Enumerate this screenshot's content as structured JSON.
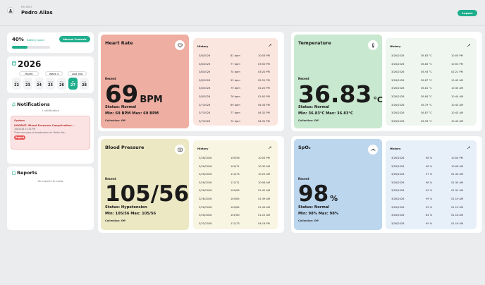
{
  "header": {
    "patient_label": "PATIENT",
    "patient_name": "Pedro Alias",
    "logout_label": "Logout"
  },
  "battery": {
    "percent_label": "40%",
    "status": "Battery good",
    "level": 0.4,
    "manual_label": "Manual Controls"
  },
  "calendar": {
    "year": "2026",
    "modes": [
      "Month",
      "Week 4",
      "Last 30d"
    ],
    "days": [
      {
        "n": "Sun",
        "d": "22"
      },
      {
        "n": "Mon",
        "d": "23"
      },
      {
        "n": "Tue",
        "d": "24"
      },
      {
        "n": "Wed",
        "d": "25"
      },
      {
        "n": "Thu",
        "d": "26"
      },
      {
        "n": "Fri",
        "d": "27",
        "selected": true
      },
      {
        "n": "Sat",
        "d": "28"
      }
    ]
  },
  "notifications": {
    "title": "Notifications",
    "count_label": "1 notification",
    "item": {
      "source": "System",
      "title": "URGENT: Blood Pressure Complication...",
      "time": "3/8/2026 01:24 PM",
      "message": "There are signs of hypotension for Pedro Alia...",
      "tag": "Urgent"
    }
  },
  "reports": {
    "title": "Reports",
    "empty": "No reports to show"
  },
  "history_label": "History",
  "metrics": {
    "heart": {
      "title": "Heart Rate",
      "recent": "Recent",
      "value": "69",
      "unit": "BPM",
      "status": "Status: Normal",
      "minmax": "Min: 69 BPM  Max: 69 BPM",
      "collection": "Collection: Off",
      "history": [
        [
          "3/8/2026",
          "81 bpm",
          "10:03 PM"
        ],
        [
          "3/8/2026",
          "77 bpm",
          "03:50 PM"
        ],
        [
          "3/8/2026",
          "74 bpm",
          "03:20 PM"
        ],
        [
          "3/8/2026",
          "92 bpm",
          "02:51 PM"
        ],
        [
          "3/8/2026",
          "79 bpm",
          "02:20 PM"
        ],
        [
          "3/8/2026",
          "76 bpm",
          "01:00 PM"
        ],
        [
          "3/7/2026",
          "69 bpm",
          "04:34 PM"
        ],
        [
          "3/7/2026",
          "77 bpm",
          "04:32 PM"
        ],
        [
          "3/7/2026",
          "72 bpm",
          "04:31 PM"
        ]
      ]
    },
    "temp": {
      "title": "Temperature",
      "recent": "Recent",
      "value": "36.83",
      "unit": "°C",
      "status": "Status: Normal",
      "minmax": "Min: 36.83°C  Max: 36.83°C",
      "collection": "Collection: Off",
      "history": [
        [
          "3/26/2026",
          "36.83 °C",
          "10:05 PM"
        ],
        [
          "3/26/2026",
          "36.83 °C",
          "10:04 PM"
        ],
        [
          "3/26/2026",
          "36.93 °C",
          "02:21 PM"
        ],
        [
          "3/26/2026",
          "36.87 °C",
          "10:45 AM"
        ],
        [
          "3/26/2026",
          "36.81 °C",
          "10:45 AM"
        ],
        [
          "3/26/2026",
          "36.84 °C",
          "10:44 AM"
        ],
        [
          "3/26/2026",
          "36.79 °C",
          "10:43 AM"
        ],
        [
          "3/26/2026",
          "36.87 °C",
          "10:43 AM"
        ],
        [
          "3/26/2026",
          "36.93 °C",
          "10:43 AM"
        ]
      ]
    },
    "bp": {
      "title": "Blood Pressure",
      "recent": "Recent",
      "value": "105/56",
      "unit": "",
      "status": "Status: Hypotension",
      "minmax": "Min: 105/56  Max: 105/56",
      "collection": "Collection: Off",
      "history": [
        [
          "3/26/2026",
          "105/56",
          "10:03 PM"
        ],
        [
          "3/26/2026",
          "109/71",
          "10:30 AM"
        ],
        [
          "3/26/2026",
          "110/73",
          "10:25 AM"
        ],
        [
          "3/26/2026",
          "112/71",
          "10:08 AM"
        ],
        [
          "3/26/2026",
          "100/63",
          "01:42 AM"
        ],
        [
          "3/26/2026",
          "100/65",
          "01:39 AM"
        ],
        [
          "3/26/2026",
          "100/65",
          "01:34 AM"
        ],
        [
          "3/26/2026",
          "101/60",
          "01:22 AM"
        ],
        [
          "3/25/2026",
          "112/73",
          "04:18 PM"
        ]
      ]
    },
    "spo2": {
      "title": "SpO₂",
      "recent": "Recent",
      "value": "98",
      "unit": "%",
      "status": "Status: Normal",
      "minmax": "Min: 98%  Max: 98%",
      "collection": "Collection: Off",
      "history": [
        [
          "3/26/2026",
          "98 %",
          "10:04 PM"
        ],
        [
          "3/26/2026",
          "98 %",
          "10:08 AM"
        ],
        [
          "3/26/2026",
          "97 %",
          "01:43 AM"
        ],
        [
          "3/26/2026",
          "98 %",
          "01:34 AM"
        ],
        [
          "3/26/2026",
          "99 %",
          "01:31 AM"
        ],
        [
          "3/26/2026",
          "99 %",
          "01:19 AM"
        ],
        [
          "3/26/2026",
          "99 %",
          "01:19 AM"
        ],
        [
          "3/26/2026",
          "84 %",
          "01:18 AM"
        ],
        [
          "3/26/2026",
          "99 %",
          "01:16 AM"
        ]
      ]
    }
  },
  "colors": {
    "accent": "#1fae8c",
    "heart": "#efaea2",
    "heart_hist": "#fae5df",
    "temp": "#c8e8cf",
    "temp_hist": "#eef6ef",
    "bp": "#ece8c3",
    "bp_hist": "#f8f5e2",
    "spo2": "#bcd6ee",
    "spo2_hist": "#e7eff9"
  }
}
